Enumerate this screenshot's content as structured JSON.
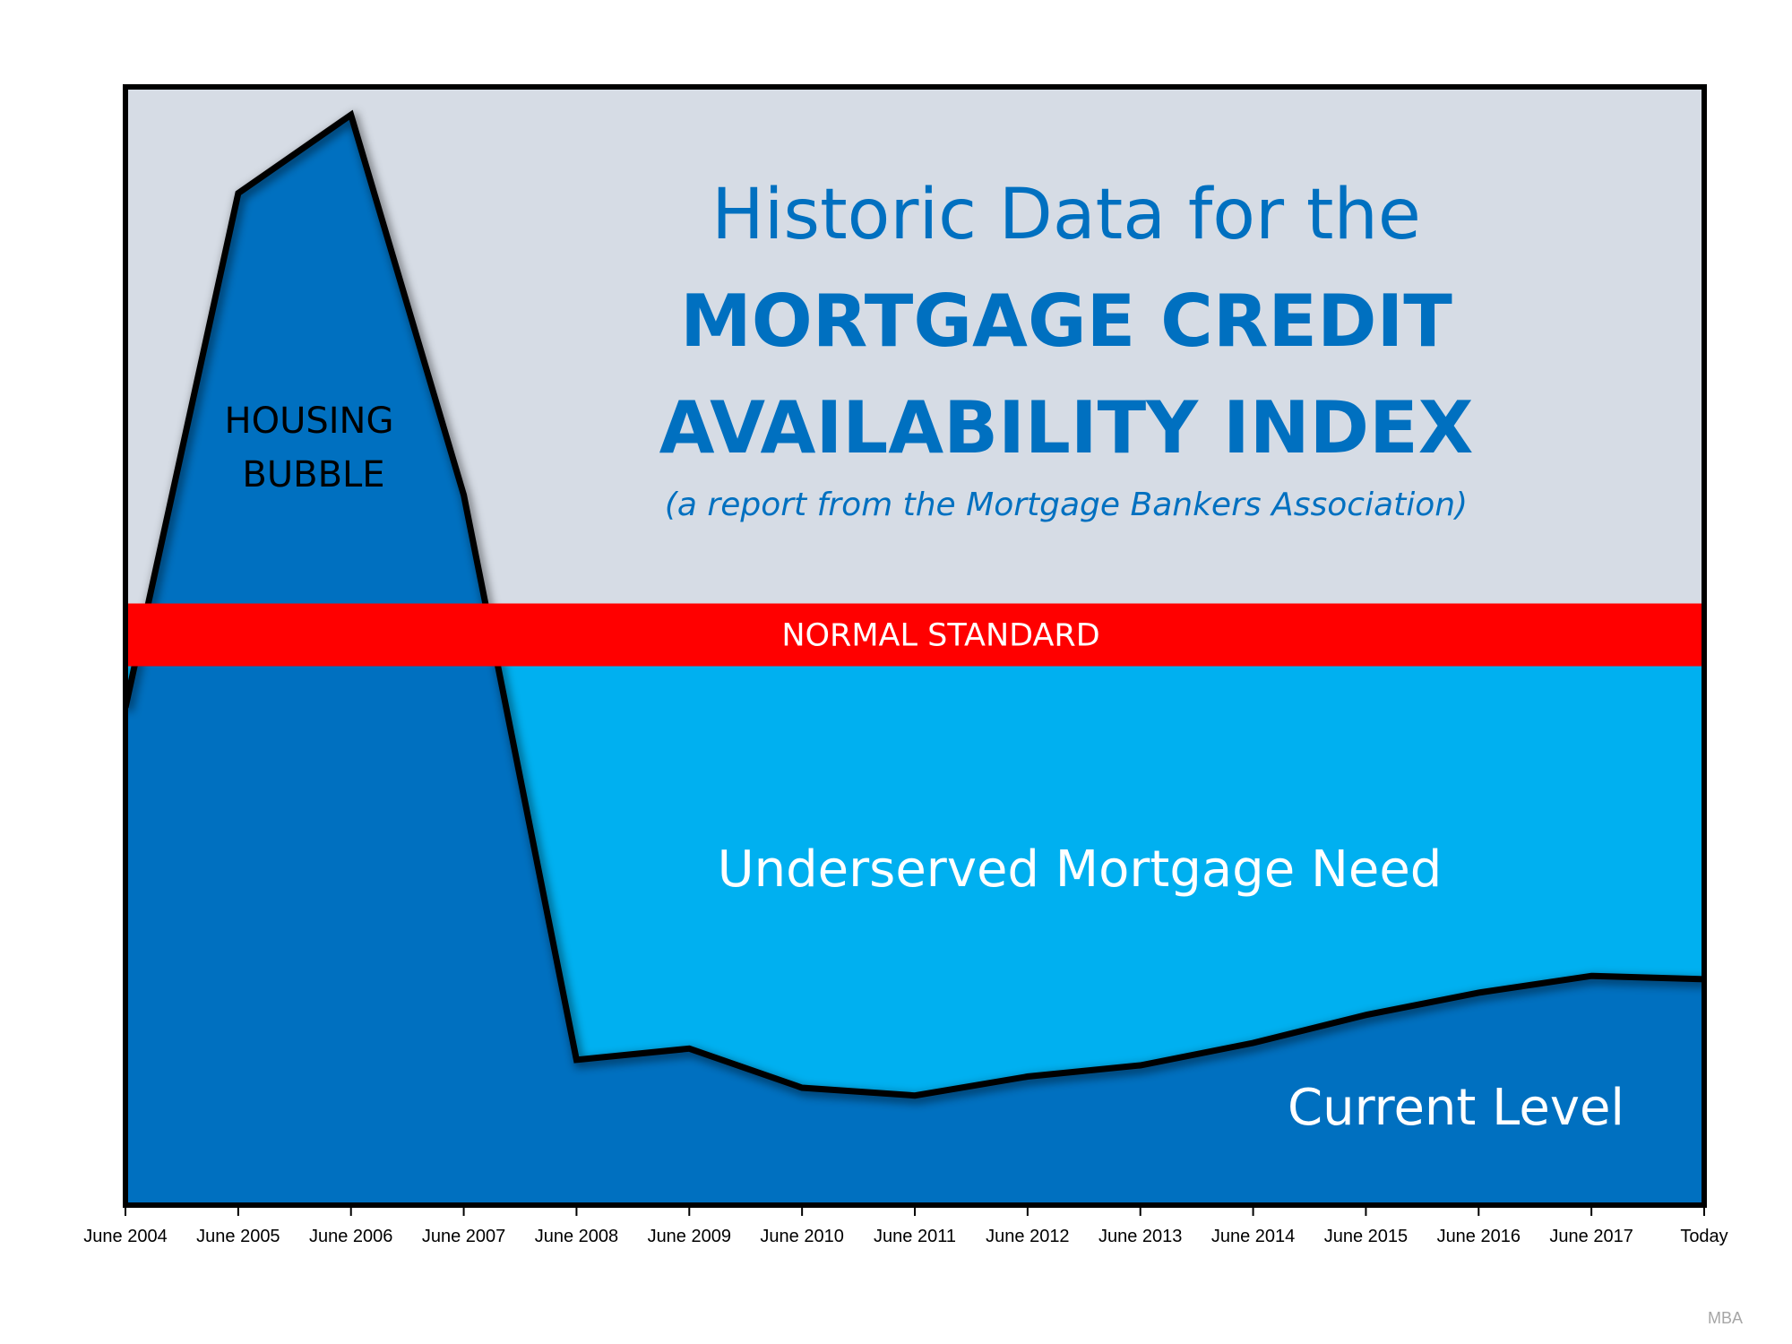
{
  "chart_data": {
    "type": "area",
    "title_line1": "Historic Data for the",
    "title_line2": "MORTGAGE CREDIT",
    "title_line3": "AVAILABILITY INDEX",
    "subtitle": "(a report from the Mortgage Bankers Association)",
    "x": [
      "June 2004",
      "June 2005",
      "June 2006",
      "June 2007",
      "June 2008",
      "June 2009",
      "June 2010",
      "June 2011",
      "June 2012",
      "June 2013",
      "June 2014",
      "June 2015",
      "June 2016",
      "June 2017",
      "Today"
    ],
    "ylim": [
      0,
      100
    ],
    "normal_standard": 51,
    "series": [
      {
        "values": [
          44.5,
          90.5,
          97.5,
          63.5,
          13,
          14,
          10.5,
          9.8,
          11.5,
          12.5,
          14.5,
          17,
          19,
          20.5,
          20.2
        ]
      }
    ],
    "annotations": {
      "bubble_line1": "HOUSING",
      "bubble_line2": "BUBBLE",
      "normal_standard": "NORMAL STANDARD",
      "underserved": "Underserved Mortgage Need",
      "current_level": "Current Level"
    },
    "colors": {
      "background": "#d6dce5",
      "bubble": "#ffff00",
      "normal_band": "#ff0000",
      "underserved": "#00b0f0",
      "current_level": "#0070c0",
      "title": "#0070c0"
    },
    "grid": false,
    "legend": "none"
  },
  "source": "MBA"
}
